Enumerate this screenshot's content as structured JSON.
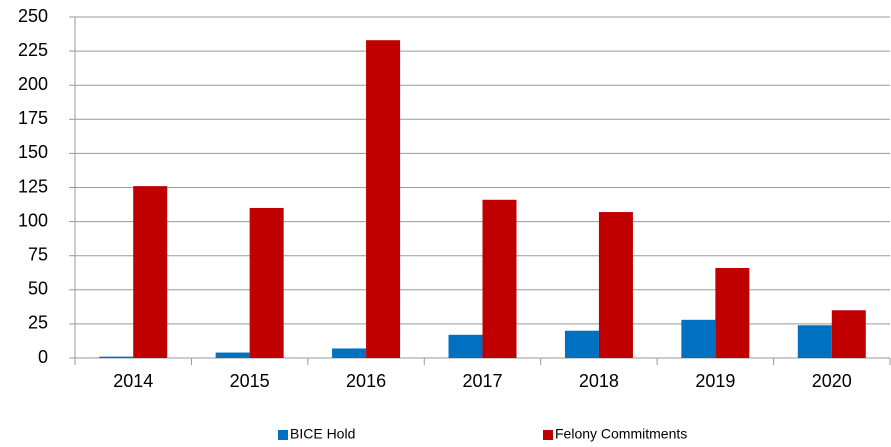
{
  "chart_data": {
    "type": "bar",
    "categories": [
      "2014",
      "2015",
      "2016",
      "2017",
      "2018",
      "2019",
      "2020"
    ],
    "series": [
      {
        "name": "BICE Hold",
        "color": "#0070c0",
        "values": [
          1,
          4,
          7,
          17,
          20,
          28,
          24
        ]
      },
      {
        "name": "Felony Commitments",
        "color": "#c00000",
        "values": [
          126,
          110,
          233,
          116,
          107,
          66,
          35
        ]
      }
    ],
    "ylim": [
      0,
      250
    ],
    "yticks": [
      0,
      25,
      50,
      75,
      100,
      125,
      150,
      175,
      200,
      225,
      250
    ],
    "grid": true,
    "legend": "bottom"
  }
}
